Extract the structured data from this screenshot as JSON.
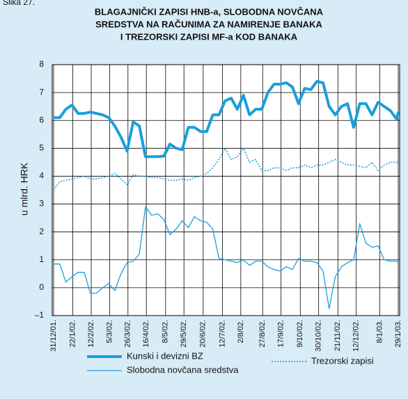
{
  "figure_label": "Slika 27.",
  "chart_data": {
    "type": "line",
    "title": [
      "BLAGAJNIČKI ZAPISI HNB-a, SLOBODNA NOVČANA",
      "SREDSTVA NA RAČUNIMA ZA NAMIRENJE BANAKA",
      "I TREZORSKI ZAPISI MF-a KOD BANAKA"
    ],
    "y_label": "u mlrd. HRK",
    "x": [
      "2001-12-31",
      "2002-01-07",
      "2002-01-14",
      "2002-01-21",
      "2002-01-28",
      "2002-02-04",
      "2002-02-11",
      "2002-02-18",
      "2002-02-25",
      "2002-03-04",
      "2002-03-11",
      "2002-03-18",
      "2002-03-25",
      "2002-04-01",
      "2002-04-08",
      "2002-04-15",
      "2002-04-22",
      "2002-04-29",
      "2002-05-06",
      "2002-05-13",
      "2002-05-20",
      "2002-05-27",
      "2002-06-03",
      "2002-06-10",
      "2002-06-17",
      "2002-06-24",
      "2002-07-01",
      "2002-07-08",
      "2002-07-15",
      "2002-07-22",
      "2002-07-29",
      "2002-08-05",
      "2002-08-12",
      "2002-08-19",
      "2002-08-26",
      "2002-09-02",
      "2002-09-09",
      "2002-09-16",
      "2002-09-23",
      "2002-09-30",
      "2002-10-07",
      "2002-10-14",
      "2002-10-21",
      "2002-10-28",
      "2002-11-04",
      "2002-11-11",
      "2002-11-18",
      "2002-11-25",
      "2002-12-02",
      "2002-12-09",
      "2002-12-16",
      "2002-12-23",
      "2002-12-30",
      "2003-01-06",
      "2003-01-13",
      "2003-01-20",
      "2003-01-27",
      "2003-01-29"
    ],
    "xlim": [
      "2001-12-31",
      "2003-01-29"
    ],
    "xticks": [
      {
        "value": "2001-12-31",
        "label": "31/12/01."
      },
      {
        "value": "2002-01-22",
        "label": "22/1/02."
      },
      {
        "value": "2002-02-12",
        "label": "12/2/02."
      },
      {
        "value": "2002-03-05",
        "label": "5/3/02."
      },
      {
        "value": "2002-03-26",
        "label": "26/3/02."
      },
      {
        "value": "2002-04-16",
        "label": "16/4/02."
      },
      {
        "value": "2002-05-08",
        "label": "8/5/02."
      },
      {
        "value": "2002-05-29",
        "label": "29/5/02."
      },
      {
        "value": "2002-06-20",
        "label": "20/6/02."
      },
      {
        "value": "2002-07-12",
        "label": "12/7/02."
      },
      {
        "value": "2002-08-02",
        "label": "2/8/02."
      },
      {
        "value": "2002-08-27",
        "label": "27/8/02."
      },
      {
        "value": "2002-09-17",
        "label": "17/9/02."
      },
      {
        "value": "2002-10-09",
        "label": "9/10/02."
      },
      {
        "value": "2002-10-30",
        "label": "30/10/02."
      },
      {
        "value": "2002-11-21",
        "label": "21/11/02."
      },
      {
        "value": "2002-12-12",
        "label": "12/12/02."
      },
      {
        "value": "2003-01-08",
        "label": "8/1/03."
      },
      {
        "value": "2003-01-29",
        "label": "29/1/03."
      }
    ],
    "ylim": [
      -1,
      8
    ],
    "yticks": [
      {
        "value": -1,
        "label": "–1"
      },
      0,
      1,
      2,
      3,
      4,
      5,
      6,
      7,
      8
    ],
    "grid": true,
    "series": [
      {
        "name": "Kunski i devizni BZ",
        "color": "#1a9fdb",
        "style": "thick",
        "values": [
          6.1,
          6.1,
          6.4,
          6.55,
          6.25,
          6.25,
          6.3,
          6.25,
          6.2,
          6.1,
          5.8,
          5.4,
          4.9,
          5.95,
          5.8,
          4.7,
          4.7,
          4.7,
          4.72,
          5.15,
          5.0,
          4.95,
          5.75,
          5.75,
          5.6,
          5.6,
          6.2,
          6.2,
          6.7,
          6.8,
          6.4,
          6.9,
          6.2,
          6.4,
          6.4,
          7.0,
          7.3,
          7.3,
          7.35,
          7.2,
          6.6,
          7.15,
          7.1,
          7.4,
          7.35,
          6.5,
          6.2,
          6.5,
          6.6,
          5.75,
          6.6,
          6.6,
          6.2,
          6.65,
          6.5,
          6.35,
          6.05,
          6.3
        ]
      },
      {
        "name": "Trezorski zapisi",
        "color": "#1a9fdb",
        "style": "dotted",
        "values": [
          3.5,
          3.8,
          3.85,
          3.9,
          3.95,
          4.0,
          3.9,
          3.9,
          3.95,
          4.0,
          4.1,
          3.9,
          3.7,
          4.05,
          4.0,
          4.0,
          3.95,
          3.95,
          3.9,
          3.85,
          3.85,
          3.9,
          3.85,
          3.95,
          4.0,
          4.1,
          4.3,
          4.6,
          5.0,
          4.6,
          4.7,
          5.0,
          4.5,
          4.6,
          4.2,
          4.2,
          4.3,
          4.3,
          4.2,
          4.3,
          4.3,
          4.4,
          4.3,
          4.4,
          4.4,
          4.5,
          4.6,
          4.5,
          4.4,
          4.4,
          4.35,
          4.3,
          4.5,
          4.2,
          4.4,
          4.5,
          4.5,
          4.5
        ]
      },
      {
        "name": "Slobodna novčana sredstva",
        "color": "#1a9fdb",
        "style": "thin",
        "values": [
          0.85,
          0.85,
          0.2,
          0.4,
          0.55,
          0.55,
          -0.2,
          -0.2,
          0.0,
          0.15,
          -0.1,
          0.5,
          0.9,
          0.95,
          1.2,
          2.9,
          2.6,
          2.65,
          2.45,
          1.9,
          2.1,
          2.4,
          2.15,
          2.55,
          2.4,
          2.35,
          2.1,
          1.05,
          1.0,
          0.95,
          0.9,
          1.0,
          0.8,
          0.95,
          0.95,
          0.75,
          0.65,
          0.6,
          0.75,
          0.65,
          1.05,
          0.95,
          0.95,
          0.9,
          0.6,
          -0.75,
          0.4,
          0.75,
          0.9,
          1.0,
          2.3,
          1.6,
          1.45,
          1.5,
          1.0,
          0.95,
          0.95,
          0.9
        ]
      }
    ]
  }
}
